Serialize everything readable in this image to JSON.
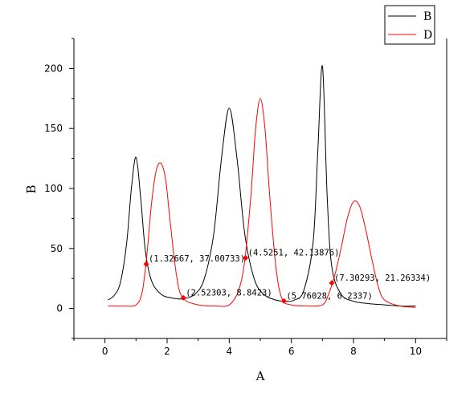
{
  "chart_data": {
    "type": "line",
    "title": "",
    "xlabel": "A",
    "ylabel": "B",
    "xlim": [
      -1,
      11
    ],
    "ylim": [
      -25,
      225
    ],
    "xticks": [
      0,
      2,
      4,
      6,
      8,
      10
    ],
    "xtick_labels": [
      "0",
      "2",
      "4",
      "6",
      "8",
      "10"
    ],
    "yticks": [
      0,
      50,
      100,
      150,
      200
    ],
    "ytick_labels": [
      "0",
      "50",
      "100",
      "150",
      "200"
    ],
    "grid": false,
    "legend_position": "top-right",
    "series": [
      {
        "name": "B",
        "color": "#000000",
        "x": [
          0.1,
          0.3,
          0.5,
          0.7,
          0.85,
          1.0,
          1.15,
          1.3,
          1.5,
          1.8,
          2.1,
          2.5,
          2.9,
          3.2,
          3.5,
          3.75,
          4.0,
          4.25,
          4.5,
          4.8,
          5.1,
          5.5,
          5.8,
          6.1,
          6.4,
          6.7,
          6.85,
          7.0,
          7.15,
          7.3,
          7.6,
          8.0,
          8.5,
          9.0,
          9.5,
          10.0
        ],
        "y": [
          7,
          11,
          22,
          55,
          100,
          126,
          92,
          48,
          23,
          12,
          9,
          8,
          12,
          25,
          62,
          125,
          167,
          125,
          62,
          25,
          12,
          7,
          6,
          7,
          15,
          55,
          130,
          202,
          95,
          35,
          12,
          6,
          4,
          3,
          2,
          2
        ]
      },
      {
        "name": "D",
        "color": "#ff0000",
        "x": [
          0.1,
          0.6,
          1.0,
          1.2,
          1.35,
          1.5,
          1.65,
          1.8,
          1.95,
          2.1,
          2.3,
          2.5,
          3.0,
          3.6,
          4.0,
          4.3,
          4.5,
          4.7,
          4.85,
          5.0,
          5.15,
          5.3,
          5.5,
          5.7,
          6.0,
          6.5,
          7.0,
          7.2,
          7.4,
          7.6,
          7.8,
          8.0,
          8.2,
          8.4,
          8.6,
          8.8,
          9.0,
          9.5,
          10.0
        ],
        "y": [
          2,
          2,
          3,
          14,
          45,
          88,
          115,
          121,
          108,
          72,
          28,
          9,
          3,
          2,
          3,
          15,
          40,
          95,
          150,
          175,
          150,
          95,
          35,
          8,
          3,
          2,
          3,
          12,
          28,
          50,
          75,
          89,
          85,
          65,
          40,
          18,
          7,
          2,
          1
        ]
      }
    ],
    "annotations": [
      {
        "x": 1.32667,
        "y": 37.00733,
        "text": "(1.32667, 37.00733)",
        "color": "#ff0000"
      },
      {
        "x": 2.52303,
        "y": 8.8423,
        "text": "(2.52303, 8.8423)",
        "color": "#ff0000"
      },
      {
        "x": 4.5251,
        "y": 42.13876,
        "text": "(4.5251, 42.13876)",
        "color": "#ff0000"
      },
      {
        "x": 5.76028,
        "y": 6.2337,
        "text": "(5.76028, 6.2337)",
        "color": "#ff0000"
      },
      {
        "x": 7.30293,
        "y": 21.26334,
        "text": "(7.30293, 21.26334)",
        "color": "#ff0000"
      }
    ]
  }
}
